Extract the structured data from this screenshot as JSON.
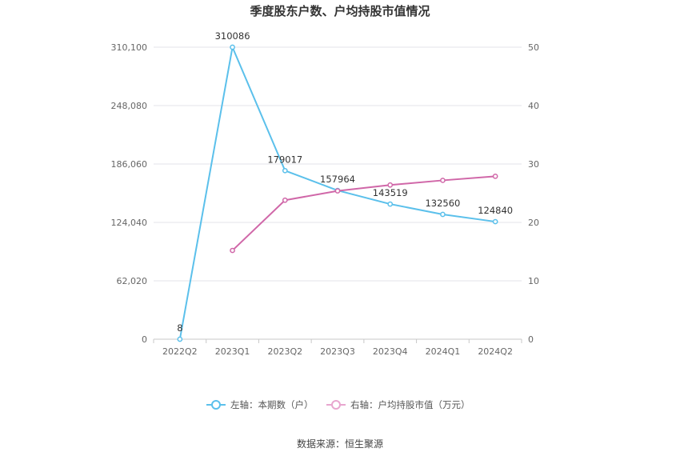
{
  "chart_data": {
    "type": "line",
    "title": "季度股东户数、户均持股市值情况",
    "categories": [
      "2022Q2",
      "2023Q1",
      "2023Q2",
      "2023Q3",
      "2023Q4",
      "2024Q1",
      "2024Q2"
    ],
    "y_left": {
      "ylim": [
        0,
        310100
      ],
      "ticks": [
        "0",
        "62,020",
        "124,040",
        "186,060",
        "248,080",
        "310,100"
      ]
    },
    "y_right": {
      "ylim": [
        0,
        50
      ],
      "ticks": [
        "0",
        "10",
        "20",
        "30",
        "40",
        "50"
      ]
    },
    "grid": true,
    "legend_position": "bottom",
    "series": [
      {
        "name": "左轴：本期数（户）",
        "axis": "left",
        "color": "#5bc0eb",
        "values": [
          8,
          310086,
          179017,
          157964,
          143519,
          132560,
          124840
        ],
        "labels": [
          "8",
          "310086",
          "179017",
          "157964",
          "143519",
          "132560",
          "124840"
        ]
      },
      {
        "name": "右轴：户均持股市值（万元）",
        "axis": "right",
        "color": "#d067a8",
        "values": [
          null,
          15.2,
          23.8,
          25.4,
          26.4,
          27.2,
          27.9
        ]
      }
    ]
  },
  "source": "数据来源：恒生聚源"
}
